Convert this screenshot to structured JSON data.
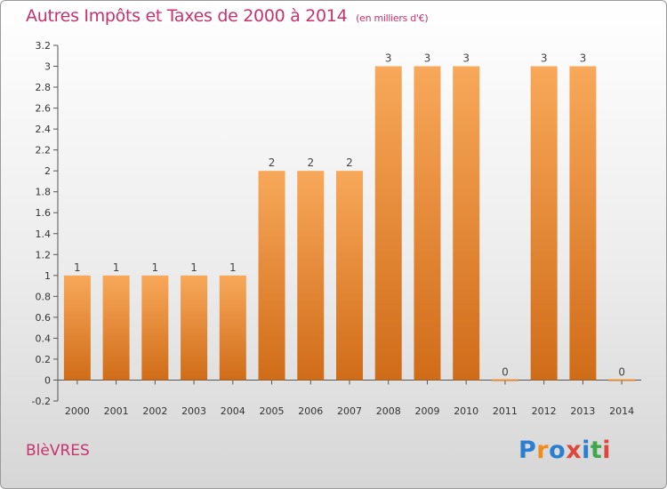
{
  "header": {
    "title": "Autres Impôts et Taxes de 2000 à 2014",
    "subtitle": "(en milliers d'€)"
  },
  "footer": {
    "commune": "BlèVRES",
    "logo_text": "Proxiti"
  },
  "colors": {
    "accent": "#c8326e",
    "bar_top": "#f8a85a",
    "bar_bottom": "#d06c18"
  },
  "chart_data": {
    "type": "bar",
    "categories": [
      "2000",
      "2001",
      "2002",
      "2003",
      "2004",
      "2005",
      "2006",
      "2007",
      "2008",
      "2009",
      "2010",
      "2011",
      "2012",
      "2013",
      "2014"
    ],
    "values": [
      1,
      1,
      1,
      1,
      1,
      2,
      2,
      2,
      3,
      3,
      3,
      0,
      3,
      3,
      0
    ],
    "data_labels": [
      "1",
      "1",
      "1",
      "1",
      "1",
      "2",
      "2",
      "2",
      "3",
      "3",
      "3",
      "0",
      "3",
      "3",
      "0"
    ],
    "ylim": [
      -0.2,
      3.2
    ],
    "yticks": [
      "-0.2",
      "0",
      "0.2",
      "0.4",
      "0.6",
      "0.8",
      "1",
      "1.2",
      "1.4",
      "1.6",
      "1.8",
      "2",
      "2.2",
      "2.4",
      "2.6",
      "2.8",
      "3",
      "3.2"
    ],
    "ytick_values": [
      -0.2,
      0,
      0.2,
      0.4,
      0.6,
      0.8,
      1,
      1.2,
      1.4,
      1.6,
      1.8,
      2,
      2.2,
      2.4,
      2.6,
      2.8,
      3,
      3.2
    ],
    "grid": false,
    "legend": "none"
  }
}
